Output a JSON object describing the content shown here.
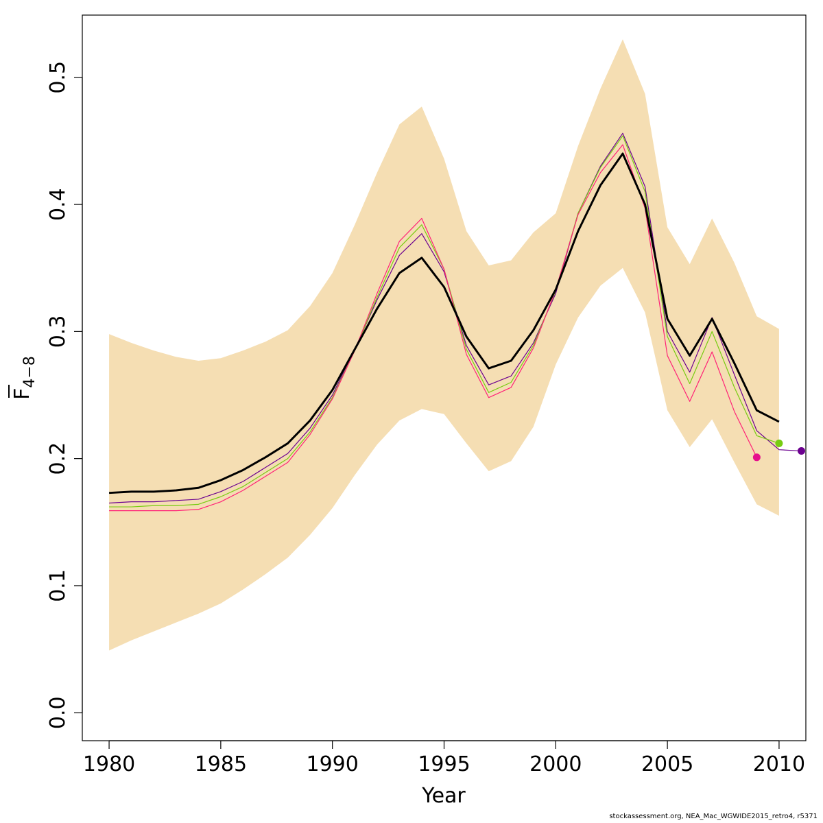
{
  "chart_data": {
    "type": "line",
    "xlabel": "Year",
    "ylabel_main": "F",
    "ylabel_sub": "4−8",
    "xlim": [
      1978.8,
      2011.2
    ],
    "ylim": [
      -0.022,
      0.549
    ],
    "xticks": [
      1980,
      1985,
      1990,
      1995,
      2000,
      2005,
      2010
    ],
    "yticks": [
      0.0,
      0.1,
      0.2,
      0.3,
      0.4,
      0.5
    ],
    "ytick_labels": [
      "0.0",
      "0.1",
      "0.2",
      "0.3",
      "0.4",
      "0.5"
    ],
    "band_color": "#f5deb3",
    "band": {
      "x": [
        1980,
        1981,
        1982,
        1983,
        1984,
        1985,
        1986,
        1987,
        1988,
        1989,
        1990,
        1991,
        1992,
        1993,
        1994,
        1995,
        1996,
        1997,
        1998,
        1999,
        2000,
        2001,
        2002,
        2003,
        2004,
        2005,
        2006,
        2007,
        2008,
        2009,
        2010
      ],
      "upper": [
        0.298,
        0.291,
        0.285,
        0.28,
        0.277,
        0.279,
        0.285,
        0.292,
        0.301,
        0.32,
        0.346,
        0.384,
        0.425,
        0.463,
        0.477,
        0.436,
        0.379,
        0.352,
        0.356,
        0.378,
        0.393,
        0.446,
        0.491,
        0.53,
        0.487,
        0.382,
        0.353,
        0.389,
        0.354,
        0.312,
        0.302
      ],
      "lower": [
        0.049,
        0.057,
        0.064,
        0.071,
        0.078,
        0.086,
        0.097,
        0.109,
        0.122,
        0.14,
        0.161,
        0.187,
        0.211,
        0.23,
        0.239,
        0.235,
        0.212,
        0.19,
        0.198,
        0.225,
        0.274,
        0.311,
        0.336,
        0.35,
        0.315,
        0.238,
        0.209,
        0.231,
        0.197,
        0.164,
        0.155
      ]
    },
    "series": [
      {
        "color": "#000000",
        "x": [
          1980,
          1981,
          1982,
          1983,
          1984,
          1985,
          1986,
          1987,
          1988,
          1989,
          1990,
          1991,
          1992,
          1993,
          1994,
          1995,
          1996,
          1997,
          1998,
          1999,
          2000,
          2001,
          2002,
          2003,
          2004,
          2005,
          2006,
          2007,
          2008,
          2009,
          2010
        ],
        "values": [
          0.173,
          0.174,
          0.174,
          0.175,
          0.177,
          0.183,
          0.191,
          0.201,
          0.212,
          0.23,
          0.254,
          0.286,
          0.318,
          0.346,
          0.358,
          0.335,
          0.296,
          0.271,
          0.277,
          0.301,
          0.333,
          0.379,
          0.415,
          0.44,
          0.4,
          0.31,
          0.281,
          0.31,
          0.275,
          0.238,
          0.229
        ],
        "end_point": false
      },
      {
        "color": "#6b008f",
        "x": [
          1980,
          1981,
          1982,
          1983,
          1984,
          1985,
          1986,
          1987,
          1988,
          1989,
          1990,
          1991,
          1992,
          1993,
          1994,
          1995,
          1996,
          1997,
          1998,
          1999,
          2000,
          2001,
          2002,
          2003,
          2004,
          2005,
          2006,
          2007,
          2008,
          2009,
          2010,
          2011
        ],
        "values": [
          0.165,
          0.166,
          0.166,
          0.167,
          0.168,
          0.174,
          0.182,
          0.193,
          0.204,
          0.224,
          0.25,
          0.286,
          0.325,
          0.36,
          0.377,
          0.347,
          0.289,
          0.258,
          0.265,
          0.291,
          0.33,
          0.393,
          0.43,
          0.456,
          0.414,
          0.3,
          0.268,
          0.311,
          0.266,
          0.222,
          0.207,
          0.206
        ],
        "end_point": true
      },
      {
        "color": "#77cc11",
        "x": [
          1980,
          1981,
          1982,
          1983,
          1984,
          1985,
          1986,
          1987,
          1988,
          1989,
          1990,
          1991,
          1992,
          1993,
          1994,
          1995,
          1996,
          1997,
          1998,
          1999,
          2000,
          2001,
          2002,
          2003,
          2004,
          2005,
          2006,
          2007,
          2008,
          2009,
          2010
        ],
        "values": [
          0.162,
          0.162,
          0.163,
          0.163,
          0.164,
          0.17,
          0.178,
          0.189,
          0.2,
          0.221,
          0.248,
          0.285,
          0.327,
          0.366,
          0.384,
          0.349,
          0.286,
          0.252,
          0.26,
          0.289,
          0.332,
          0.393,
          0.429,
          0.454,
          0.41,
          0.296,
          0.259,
          0.3,
          0.256,
          0.218,
          0.212
        ],
        "end_point": true
      },
      {
        "color": "#ff2277",
        "x": [
          1980,
          1981,
          1982,
          1983,
          1984,
          1985,
          1986,
          1987,
          1988,
          1989,
          1990,
          1991,
          1992,
          1993,
          1994,
          1995,
          1996,
          1997,
          1998,
          1999,
          2000,
          2001,
          2002,
          2003,
          2004,
          2005,
          2006,
          2007,
          2008,
          2009
        ],
        "values": [
          0.159,
          0.159,
          0.159,
          0.159,
          0.16,
          0.166,
          0.175,
          0.186,
          0.197,
          0.219,
          0.247,
          0.285,
          0.33,
          0.371,
          0.389,
          0.349,
          0.282,
          0.248,
          0.256,
          0.287,
          0.333,
          0.392,
          0.425,
          0.447,
          0.397,
          0.281,
          0.245,
          0.284,
          0.237,
          0.201
        ],
        "end_point": true,
        "end_point_color": "#e60f8c"
      }
    ]
  },
  "footer_text": "stockassessment.org, NEA_Mac_WGWIDE2015_retro4, r5371"
}
